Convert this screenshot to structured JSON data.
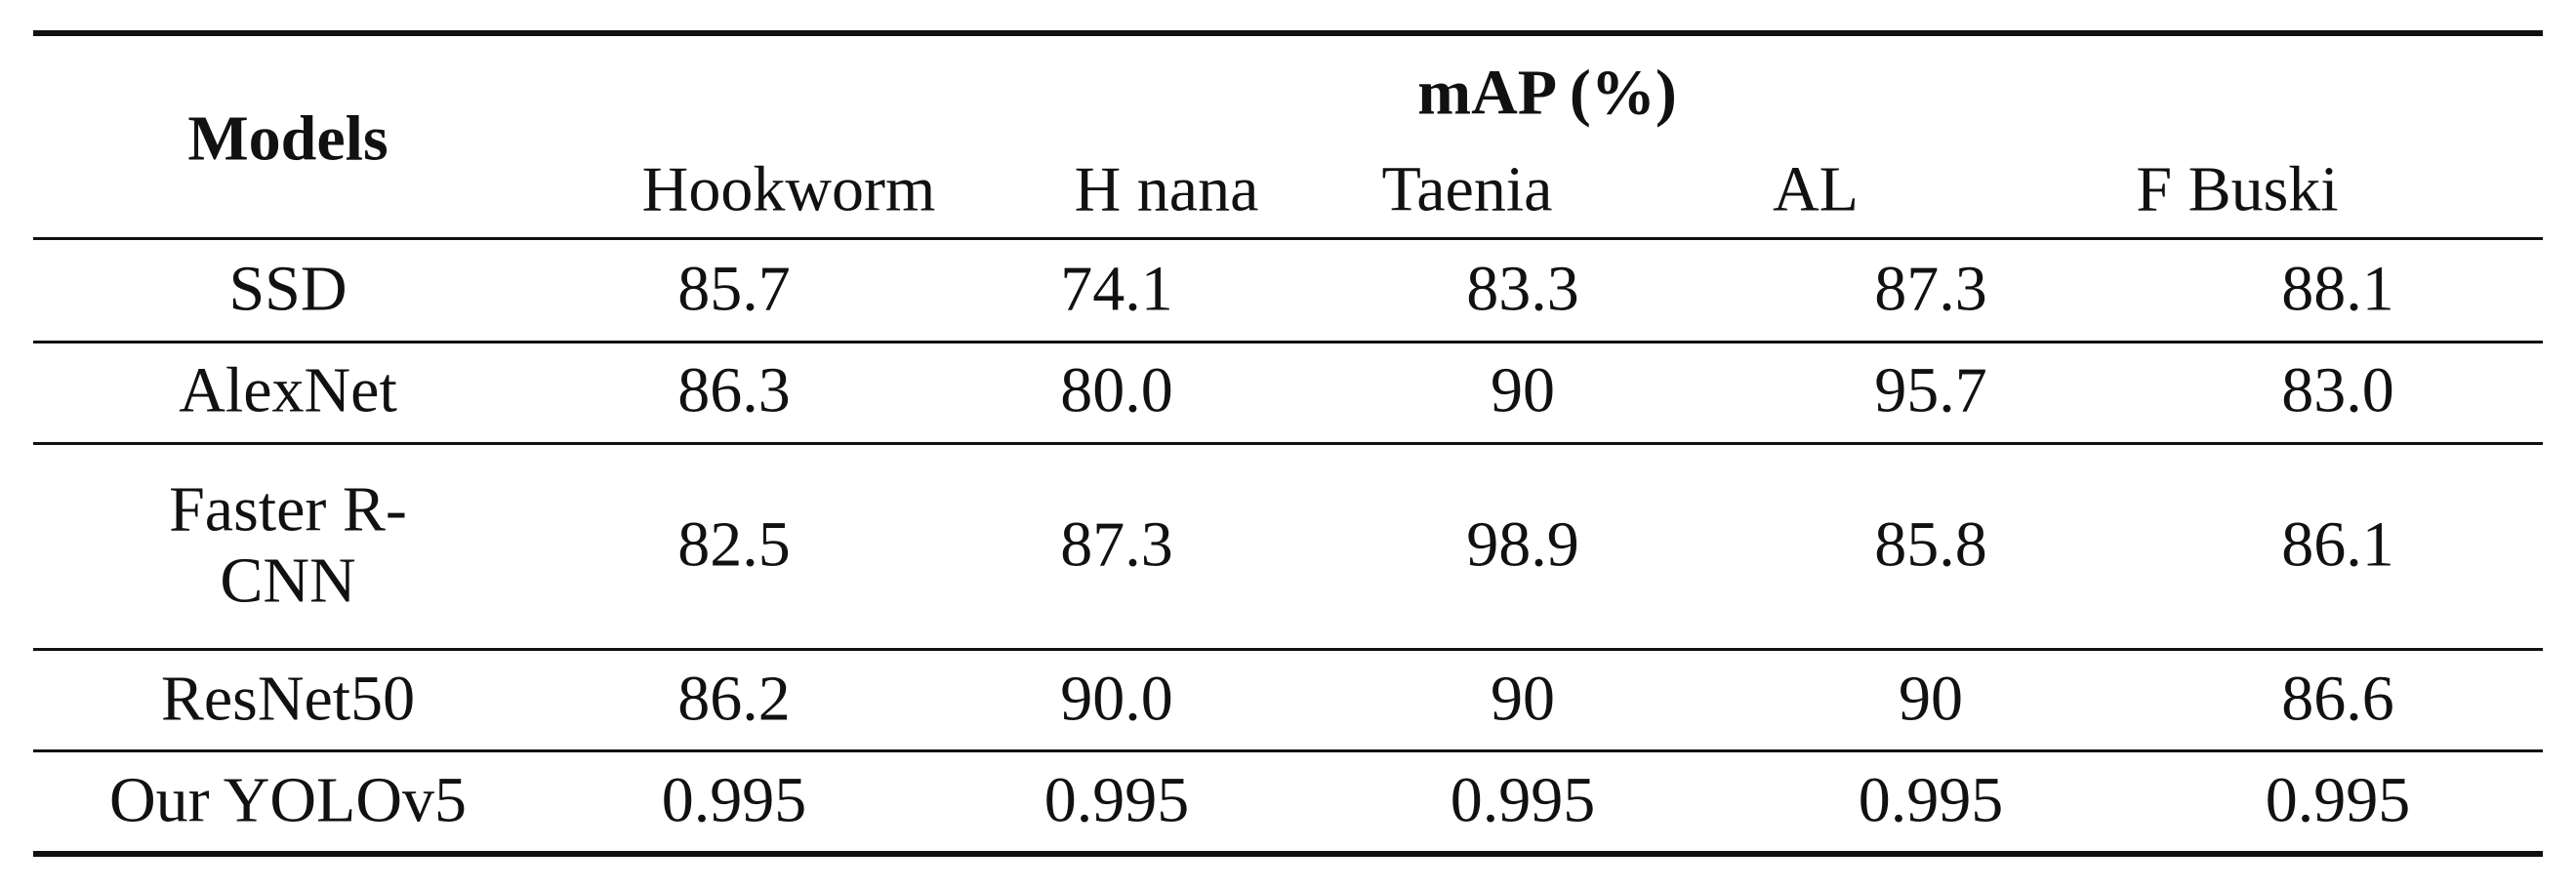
{
  "table": {
    "header": {
      "models": "Models",
      "group": "mAP (%)",
      "columns": [
        "Hookworm",
        "H nana",
        "Taenia",
        "AL",
        "F Buski"
      ]
    },
    "rows": [
      [
        "SSD",
        "85.7",
        "74.1",
        "83.3",
        "87.3",
        "88.1"
      ],
      [
        "AlexNet",
        "86.3",
        "80.0",
        "90",
        "95.7",
        "83.0"
      ],
      [
        "Faster R-CNN",
        "82.5",
        "87.3",
        "98.9",
        "85.8",
        "86.1"
      ],
      [
        "ResNet50",
        "86.2",
        "90.0",
        "90",
        "90",
        "86.6"
      ],
      [
        "Our YOLOv5",
        "0.995",
        "0.995",
        "0.995",
        "0.995",
        "0.995"
      ]
    ]
  }
}
